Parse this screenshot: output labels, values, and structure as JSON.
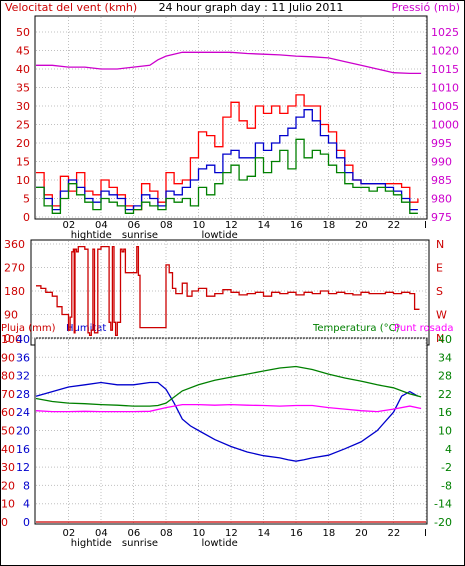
{
  "header": {
    "left_label": "Velocitat del vent (kmh)",
    "center_title": "24 hour graph day : 11 Julio 2011",
    "right_label": "Pressió (mb)"
  },
  "colors": {
    "wind_avg": "#008000",
    "wind_gust": "#ff0000",
    "wind_speed": "#0000cc",
    "pressure": "#cc00cc",
    "direction": "#cc0000",
    "rain": "#cc0000",
    "humidity": "#0000cc",
    "temperature": "#008000",
    "dewpoint": "#ff00ff",
    "grid": "#c0c0c0"
  },
  "hour_labels": [
    "02",
    "04",
    "06",
    "08",
    "10",
    "12",
    "14",
    "16",
    "18",
    "20",
    "22",
    "I"
  ],
  "event_labels": [
    {
      "text": "hightide",
      "hour": 3.4
    },
    {
      "text": "sunrise",
      "hour": 6.4
    },
    {
      "text": "lowtide",
      "hour": 11.3
    }
  ],
  "chart_data": [
    {
      "type": "line",
      "panel": "wind-pressure",
      "x_unit": "hour",
      "xlim": [
        0,
        24
      ],
      "y_left": {
        "label": "Velocitat del vent (kmh)",
        "ticks": [
          0,
          5,
          10,
          15,
          20,
          25,
          30,
          35,
          40,
          45,
          50
        ],
        "range": [
          0,
          50
        ]
      },
      "y_right": {
        "label": "Pressió (mb)",
        "ticks": [
          975,
          980,
          985,
          990,
          995,
          1000,
          1005,
          1010,
          1015,
          1020,
          1025
        ],
        "range": [
          975,
          1025
        ]
      },
      "series": [
        {
          "key": "pressure",
          "axis": "right",
          "x": [
            0,
            1,
            2,
            3,
            4,
            5,
            6,
            7,
            7.5,
            8,
            9,
            10,
            11,
            12,
            13,
            14,
            15,
            16,
            17,
            18,
            19,
            20,
            21,
            22,
            23,
            23.7
          ],
          "y": [
            1016,
            1016,
            1015.5,
            1015.5,
            1015,
            1015,
            1015.5,
            1016,
            1017.5,
            1018.5,
            1019.5,
            1019.5,
            1019.5,
            1019.5,
            1019.2,
            1019,
            1018.8,
            1018.5,
            1018.3,
            1018,
            1017,
            1016,
            1015,
            1014,
            1013.8,
            1013.8
          ]
        },
        {
          "key": "wind_gust",
          "axis": "left",
          "x": [
            0,
            0.5,
            1,
            1.5,
            2,
            2.5,
            3,
            3.5,
            4,
            4.5,
            5,
            5.5,
            6,
            6.5,
            7,
            7.5,
            8,
            8.5,
            9,
            9.5,
            10,
            10.5,
            11,
            11.5,
            12,
            12.5,
            13,
            13.5,
            14,
            14.5,
            15,
            15.5,
            16,
            16.5,
            17,
            17.5,
            18,
            18.5,
            19,
            19.5,
            20,
            20.5,
            21,
            21.5,
            22,
            22.5,
            23,
            23.5
          ],
          "y": [
            12,
            6,
            3,
            11,
            7,
            12,
            7,
            6,
            10,
            8,
            6,
            3,
            2,
            9,
            7,
            4,
            12,
            9,
            10,
            16,
            23,
            22,
            19,
            27,
            31,
            26,
            24,
            30,
            28,
            30,
            28,
            30,
            33,
            30,
            30,
            25,
            23,
            18,
            14,
            10,
            9,
            9,
            9,
            9,
            9,
            8,
            4,
            5
          ]
        },
        {
          "key": "wind_speed",
          "axis": "left",
          "x": [
            0,
            0.5,
            1,
            1.5,
            2,
            2.5,
            3,
            3.5,
            4,
            4.5,
            5,
            5.5,
            6,
            6.5,
            7,
            7.5,
            8,
            8.5,
            9,
            9.5,
            10,
            10.5,
            11,
            11.5,
            12,
            12.5,
            13,
            13.5,
            14,
            14.5,
            15,
            15.5,
            16,
            16.5,
            17,
            17.5,
            18,
            18.5,
            19,
            19.5,
            20,
            20.5,
            21,
            21.5,
            22,
            22.5,
            23,
            23.5
          ],
          "y": [
            8,
            5,
            2,
            7,
            10,
            8,
            5,
            4,
            7,
            6,
            5,
            2,
            3,
            6,
            5,
            3,
            7,
            6,
            8,
            10,
            13,
            14,
            12,
            17,
            18,
            16,
            16,
            20,
            18,
            20,
            22,
            24,
            27,
            29,
            26,
            22,
            20,
            16,
            12,
            10,
            9,
            9,
            9,
            8,
            7,
            5,
            2,
            2
          ]
        },
        {
          "key": "wind_avg",
          "axis": "left",
          "x": [
            0,
            0.5,
            1,
            1.5,
            2,
            2.5,
            3,
            3.5,
            4,
            4.5,
            5,
            5.5,
            6,
            6.5,
            7,
            7.5,
            8,
            8.5,
            9,
            9.5,
            10,
            10.5,
            11,
            11.5,
            12,
            12.5,
            13,
            13.5,
            14,
            14.5,
            15,
            15.5,
            16,
            16.5,
            17,
            17.5,
            18,
            18.5,
            19,
            19.5,
            20,
            20.5,
            21,
            21.5,
            22,
            22.5,
            23,
            23.5
          ],
          "y": [
            8,
            3,
            1,
            5,
            9,
            6,
            4,
            2,
            5,
            4,
            3,
            1,
            2,
            4,
            3,
            2,
            5,
            4,
            5,
            3,
            8,
            6,
            9,
            12,
            14,
            10,
            11,
            16,
            12,
            15,
            18,
            13,
            21,
            16,
            18,
            17,
            14,
            12,
            9,
            8,
            8,
            7,
            8,
            7,
            6,
            4,
            1,
            1
          ]
        }
      ]
    },
    {
      "type": "line",
      "panel": "wind-direction",
      "x_unit": "hour",
      "xlim": [
        0,
        24
      ],
      "y_left": {
        "label": "",
        "ticks": [
          0,
          90,
          180,
          270,
          360
        ],
        "range": [
          0,
          360
        ]
      },
      "y_right": {
        "label": "",
        "ticks": [
          "N",
          "W",
          "S",
          "E",
          "N"
        ],
        "range": [
          0,
          360
        ]
      },
      "series": [
        {
          "key": "direction",
          "axis": "left",
          "x": [
            0,
            0.3,
            0.6,
            1,
            1.3,
            1.6,
            2,
            2.1,
            2.2,
            2.3,
            2.35,
            2.4,
            2.5,
            2.6,
            3,
            3.2,
            3.3,
            3.4,
            3.5,
            3.6,
            3.8,
            4,
            4.3,
            4.5,
            4.6,
            4.7,
            4.8,
            4.9,
            5,
            5.2,
            5.3,
            5.4,
            5.5,
            6,
            6.2,
            6.3,
            6.4,
            6.5,
            6.8,
            7,
            7.2,
            7.6,
            7.8,
            8,
            8.2,
            8.4,
            8.6,
            9,
            9.3,
            9.6,
            10,
            10.5,
            11,
            11.5,
            12,
            12.5,
            13,
            13.5,
            14,
            14.5,
            15,
            15.5,
            16,
            16.5,
            17,
            17.5,
            18,
            18.5,
            19,
            19.5,
            20,
            20.5,
            21,
            21.5,
            22,
            22.5,
            23,
            23.3,
            23.6
          ],
          "y": [
            200,
            190,
            175,
            160,
            120,
            90,
            30,
            80,
            330,
            340,
            20,
            340,
            330,
            350,
            340,
            20,
            10,
            30,
            340,
            20,
            340,
            350,
            350,
            60,
            30,
            350,
            60,
            10,
            60,
            340,
            330,
            340,
            250,
            250,
            350,
            240,
            40,
            40,
            40,
            40,
            40,
            40,
            40,
            280,
            250,
            190,
            170,
            210,
            160,
            180,
            190,
            160,
            170,
            185,
            175,
            165,
            170,
            175,
            160,
            175,
            170,
            175,
            165,
            175,
            170,
            180,
            170,
            175,
            170,
            165,
            175,
            170,
            170,
            175,
            170,
            175,
            170,
            110,
            110
          ]
        }
      ]
    },
    {
      "type": "line",
      "panel": "rain-humidity-temperature",
      "x_unit": "hour",
      "xlim": [
        0,
        24
      ],
      "y_left_rain": {
        "label": "Pluja (mm)",
        "ticks": [
          0,
          10,
          20,
          30,
          40,
          50,
          60,
          70,
          80,
          90,
          100
        ],
        "range": [
          0,
          100
        ]
      },
      "y_left_humidity": {
        "label": "Humitat",
        "ticks": [
          0,
          4,
          8,
          12,
          16,
          20,
          24,
          28,
          32,
          36,
          40
        ],
        "range": [
          0,
          40
        ]
      },
      "y_right": {
        "label": "Temperatura (°C)",
        "ticks": [
          -20,
          -14,
          -8,
          -2,
          4,
          10,
          16,
          22,
          28,
          34,
          40
        ],
        "range": [
          -20,
          40
        ]
      },
      "dewpoint_label": "Punt rosada",
      "series": [
        {
          "key": "humidity",
          "axis": "left_humidity",
          "x": [
            0,
            1,
            2,
            3,
            4,
            5,
            6,
            7,
            7.5,
            8,
            8.5,
            9,
            9.5,
            10,
            11,
            12,
            13,
            14,
            15,
            15.5,
            16,
            16.5,
            17,
            18,
            19,
            20,
            21,
            22,
            22.5,
            23,
            23.5
          ],
          "y": [
            27.5,
            28.5,
            29.5,
            30,
            30.5,
            30,
            30,
            30.5,
            30.5,
            29,
            26,
            22.5,
            21,
            20,
            18,
            16.5,
            15.3,
            14.5,
            14,
            13.6,
            13.3,
            13.6,
            14,
            14.6,
            16,
            17.5,
            20,
            24,
            27.5,
            28.5,
            27.5
          ]
        },
        {
          "key": "temperature",
          "axis": "right",
          "x": [
            0,
            1,
            2,
            3,
            4,
            5,
            6,
            7,
            7.5,
            8,
            9,
            10,
            11,
            12,
            13,
            14,
            15,
            16,
            17,
            18,
            19,
            20,
            21,
            22,
            23,
            23.7
          ],
          "y": [
            20.5,
            19.5,
            19,
            18.8,
            18.5,
            18.3,
            18,
            18,
            18.2,
            19,
            23,
            25,
            26.5,
            27.5,
            28.5,
            29.5,
            30.5,
            31,
            30,
            28.5,
            27.2,
            26.2,
            25,
            24,
            22,
            21
          ]
        },
        {
          "key": "dewpoint",
          "axis": "right",
          "x": [
            0,
            1,
            2,
            3,
            4,
            5,
            6,
            7,
            8,
            9,
            10,
            11,
            12,
            13,
            14,
            15,
            16,
            17,
            18,
            19,
            20,
            21,
            22,
            23,
            23.7
          ],
          "y": [
            16.5,
            16.2,
            16.2,
            16.3,
            16.2,
            16.2,
            16.2,
            16.3,
            17.5,
            18.5,
            18.5,
            18.3,
            18.5,
            18.3,
            18.2,
            18,
            18.2,
            18.2,
            17.5,
            17,
            16.5,
            16.2,
            17,
            18,
            17.2
          ]
        },
        {
          "key": "rain",
          "axis": "left_rain",
          "x": [
            0,
            24
          ],
          "y": [
            0,
            0
          ]
        }
      ]
    }
  ]
}
